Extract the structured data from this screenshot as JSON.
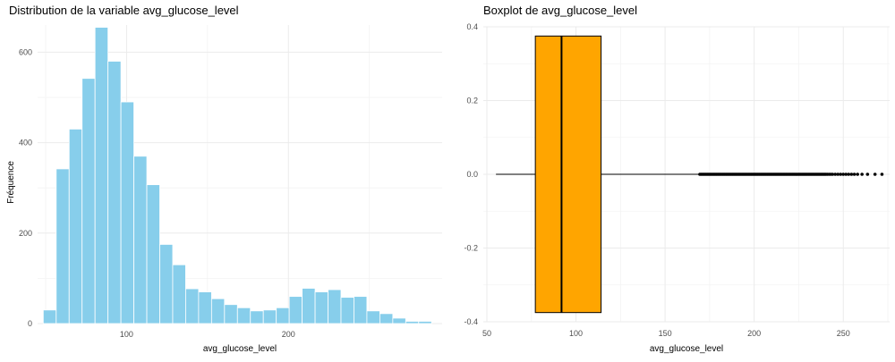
{
  "chart_data": [
    {
      "type": "bar",
      "title": "Distribution de la variable avg_glucose_level",
      "xlabel": "avg_glucose_level",
      "ylabel": "Fréquence",
      "xlim": [
        45,
        295
      ],
      "ylim": [
        0,
        660
      ],
      "xticks": [
        100,
        200
      ],
      "yticks": [
        0,
        200,
        400,
        600
      ],
      "grid": true,
      "bar_color": "#87CEEB",
      "bins": [
        {
          "x": 52.5,
          "value": 30
        },
        {
          "x": 60.5,
          "value": 342
        },
        {
          "x": 68.5,
          "value": 430
        },
        {
          "x": 76.5,
          "value": 542
        },
        {
          "x": 84.5,
          "value": 655
        },
        {
          "x": 92.5,
          "value": 580
        },
        {
          "x": 100.5,
          "value": 490
        },
        {
          "x": 108.5,
          "value": 370
        },
        {
          "x": 116.5,
          "value": 307
        },
        {
          "x": 124.5,
          "value": 175
        },
        {
          "x": 132.5,
          "value": 130
        },
        {
          "x": 140.5,
          "value": 77
        },
        {
          "x": 148.5,
          "value": 70
        },
        {
          "x": 156.5,
          "value": 55
        },
        {
          "x": 164.5,
          "value": 42
        },
        {
          "x": 172.5,
          "value": 35
        },
        {
          "x": 180.5,
          "value": 28
        },
        {
          "x": 188.5,
          "value": 30
        },
        {
          "x": 196.5,
          "value": 35
        },
        {
          "x": 204.5,
          "value": 60
        },
        {
          "x": 212.5,
          "value": 78
        },
        {
          "x": 220.5,
          "value": 70
        },
        {
          "x": 228.5,
          "value": 75
        },
        {
          "x": 236.5,
          "value": 58
        },
        {
          "x": 244.5,
          "value": 60
        },
        {
          "x": 252.5,
          "value": 28
        },
        {
          "x": 260.5,
          "value": 22
        },
        {
          "x": 268.5,
          "value": 12
        },
        {
          "x": 276.5,
          "value": 5
        },
        {
          "x": 284.5,
          "value": 5
        }
      ],
      "bin_width": 8
    },
    {
      "type": "boxplot",
      "title": "Boxplot de avg_glucose_level",
      "xlabel": "avg_glucose_level",
      "ylabel": "",
      "xlim": [
        48,
        276
      ],
      "ylim": [
        -0.4,
        0.4
      ],
      "xticks": [
        50,
        100,
        150,
        200,
        250
      ],
      "yticks": [
        -0.4,
        -0.2,
        0.0,
        0.2,
        0.4
      ],
      "ytick_labels": [
        "-0.4",
        "-0.2",
        "0.0",
        "0.2",
        "0.4"
      ],
      "grid": true,
      "box_color": "#FFA500",
      "whisker_min": 55.1,
      "q1": 77.2,
      "median": 91.9,
      "q3": 114.1,
      "whisker_max": 169.3,
      "box_y": [
        -0.375,
        0.375
      ],
      "outliers": [
        169.5,
        170.2,
        170.9,
        171.6,
        172.3,
        173.0,
        173.7,
        174.4,
        175.1,
        175.8,
        176.5,
        177.2,
        177.9,
        178.6,
        179.3,
        180.0,
        180.7,
        181.4,
        182.1,
        182.8,
        183.5,
        184.2,
        184.9,
        185.6,
        186.3,
        187.0,
        187.7,
        188.4,
        189.1,
        189.8,
        190.5,
        191.2,
        191.9,
        192.6,
        193.3,
        194.0,
        194.7,
        195.4,
        196.1,
        196.8,
        197.5,
        198.2,
        198.9,
        199.6,
        200.3,
        201.0,
        201.7,
        202.4,
        203.1,
        203.8,
        204.5,
        205.2,
        205.9,
        206.6,
        207.3,
        208.0,
        208.7,
        209.4,
        210.1,
        210.8,
        211.5,
        212.2,
        212.9,
        213.6,
        214.3,
        215.0,
        215.7,
        216.4,
        217.1,
        217.8,
        218.5,
        219.2,
        219.9,
        220.6,
        221.3,
        222.0,
        222.7,
        223.4,
        224.1,
        224.8,
        225.5,
        226.2,
        226.9,
        227.6,
        228.3,
        229.0,
        229.7,
        230.4,
        231.1,
        231.8,
        232.5,
        233.2,
        233.9,
        234.6,
        235.3,
        236.0,
        236.7,
        237.4,
        238.1,
        238.8,
        239.5,
        240.2,
        241.0,
        242.0,
        243.0,
        244.0,
        245.5,
        247.0,
        248.5,
        250.0,
        251.5,
        253.0,
        254.6,
        256.2,
        258.0,
        260.5,
        263.6,
        267.8,
        271.7
      ]
    }
  ]
}
